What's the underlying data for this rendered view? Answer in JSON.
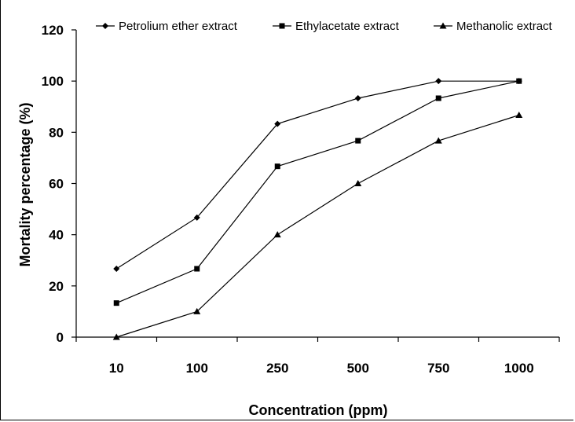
{
  "chart_data": {
    "type": "line",
    "categories": [
      "10",
      "100",
      "250",
      "500",
      "750",
      "1000"
    ],
    "series": [
      {
        "name": "Petrolium ether extract",
        "marker": "diamond",
        "values": [
          26.7,
          46.7,
          83.3,
          93.3,
          100,
          100
        ]
      },
      {
        "name": "Ethylacetate extract",
        "marker": "square",
        "values": [
          13.3,
          26.7,
          66.7,
          76.7,
          93.3,
          100
        ]
      },
      {
        "name": "Methanolic extract",
        "marker": "triangle",
        "values": [
          0,
          10,
          40,
          60,
          76.7,
          86.7
        ]
      }
    ],
    "xlabel": "Concentration (ppm)",
    "ylabel": "Mortality percentage (%)",
    "ylim": [
      0,
      120
    ],
    "yticks": [
      0,
      20,
      40,
      60,
      80,
      100,
      120
    ],
    "grid": false,
    "legend": "top",
    "line_color": "#000000"
  }
}
